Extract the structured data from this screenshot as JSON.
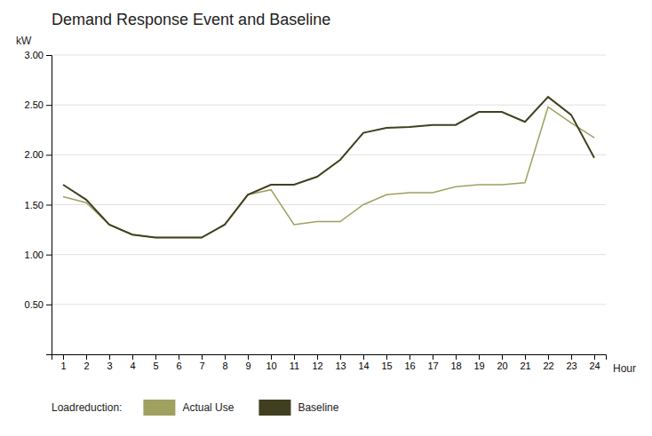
{
  "chart_data": {
    "type": "line",
    "title": "Demand Response Event and Baseline",
    "xlabel": "Hour",
    "ylabel": "kW",
    "x": [
      1,
      2,
      3,
      4,
      5,
      6,
      7,
      8,
      9,
      10,
      11,
      12,
      13,
      14,
      15,
      16,
      17,
      18,
      19,
      20,
      21,
      22,
      23,
      24
    ],
    "series": [
      {
        "name": "Actual Use",
        "color": "#a0a060",
        "values": [
          1.58,
          1.52,
          1.3,
          1.2,
          1.17,
          1.17,
          1.17,
          1.3,
          1.6,
          1.65,
          1.3,
          1.33,
          1.33,
          1.5,
          1.6,
          1.62,
          1.62,
          1.68,
          1.7,
          1.7,
          1.72,
          2.48,
          2.32,
          2.17
        ]
      },
      {
        "name": "Baseline",
        "color": "#404020",
        "values": [
          1.7,
          1.55,
          1.3,
          1.2,
          1.17,
          1.17,
          1.17,
          1.3,
          1.6,
          1.7,
          1.7,
          1.78,
          1.95,
          2.22,
          2.27,
          2.28,
          2.3,
          2.3,
          2.43,
          2.43,
          2.33,
          2.58,
          2.4,
          1.97
        ]
      }
    ],
    "xlim": [
      0.5,
      24.5
    ],
    "xticks": [
      1,
      2,
      3,
      4,
      5,
      6,
      7,
      8,
      9,
      10,
      11,
      12,
      13,
      14,
      15,
      16,
      17,
      18,
      19,
      20,
      21,
      22,
      23,
      24
    ],
    "ylim": [
      0,
      3.0
    ],
    "yticks": [
      {
        "value": 0.5,
        "label": "0.50"
      },
      {
        "value": 1.0,
        "label": "1.00"
      },
      {
        "value": 1.5,
        "label": "1.50"
      },
      {
        "value": 2.0,
        "label": "2.00"
      },
      {
        "value": 2.5,
        "label": "2.50"
      },
      {
        "value": 3.0,
        "label": "3.00"
      }
    ],
    "grid": true,
    "legend": "bottom",
    "legend_title": "Loadreduction:"
  }
}
